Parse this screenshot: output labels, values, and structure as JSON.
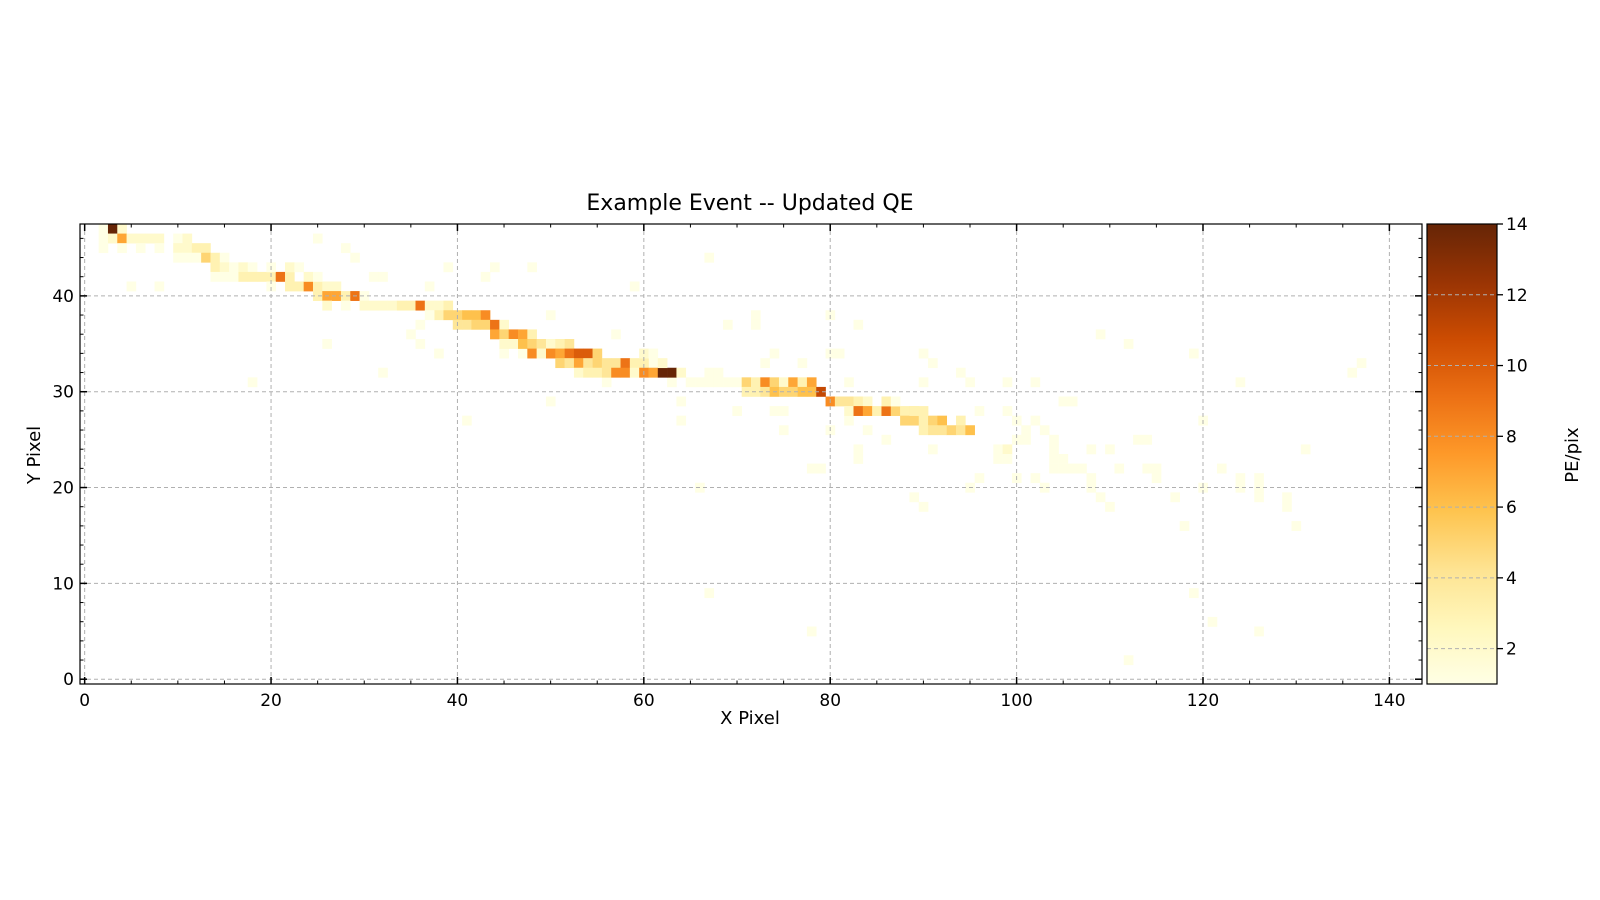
{
  "chart_data": {
    "type": "heatmap",
    "title": "Example Event -- Updated QE",
    "xlabel": "X Pixel",
    "ylabel": "Y Pixel",
    "xlim": [
      -0.5,
      143.5
    ],
    "ylim": [
      -0.5,
      47.5
    ],
    "xticks": [
      0,
      20,
      40,
      60,
      80,
      100,
      120,
      140
    ],
    "yticks": [
      0,
      10,
      20,
      30,
      40
    ],
    "grid": true,
    "colorbar": {
      "label": "PE/pix",
      "range": [
        1,
        14
      ],
      "ticks": [
        2,
        4,
        6,
        8,
        10,
        12,
        14
      ],
      "colormap": "YlOrBr",
      "colors": [
        "#ffffe5",
        "#fff7bc",
        "#fee391",
        "#fec44f",
        "#fe9929",
        "#ec7014",
        "#cc4c02",
        "#993404",
        "#662506"
      ]
    },
    "track": [
      [
        2,
        47,
        1
      ],
      [
        3,
        47,
        14
      ],
      [
        4,
        47,
        2
      ],
      [
        2,
        46,
        1
      ],
      [
        3,
        46,
        2
      ],
      [
        4,
        46,
        7
      ],
      [
        5,
        46,
        2
      ],
      [
        6,
        46,
        2
      ],
      [
        7,
        46,
        2
      ],
      [
        8,
        46,
        2
      ],
      [
        2,
        45,
        1
      ],
      [
        4,
        45,
        1
      ],
      [
        6,
        45,
        1
      ],
      [
        8,
        45,
        1
      ],
      [
        10,
        46,
        1
      ],
      [
        11,
        46,
        2
      ],
      [
        10,
        45,
        2
      ],
      [
        11,
        45,
        2
      ],
      [
        12,
        45,
        3
      ],
      [
        13,
        45,
        3
      ],
      [
        10,
        44,
        1
      ],
      [
        11,
        44,
        1
      ],
      [
        12,
        44,
        1
      ],
      [
        13,
        44,
        5
      ],
      [
        14,
        44,
        3
      ],
      [
        15,
        44,
        1
      ],
      [
        14,
        43,
        3
      ],
      [
        15,
        43,
        2
      ],
      [
        16,
        43,
        1
      ],
      [
        17,
        43,
        2
      ],
      [
        18,
        43,
        1
      ],
      [
        14,
        42,
        1
      ],
      [
        15,
        42,
        1
      ],
      [
        16,
        42,
        1
      ],
      [
        17,
        42,
        3
      ],
      [
        18,
        42,
        3
      ],
      [
        19,
        42,
        3
      ],
      [
        20,
        42,
        3
      ],
      [
        21,
        42,
        9
      ],
      [
        22,
        42,
        3
      ],
      [
        20,
        43,
        1
      ],
      [
        22,
        43,
        2
      ],
      [
        23,
        43,
        1
      ],
      [
        22,
        41,
        3
      ],
      [
        23,
        41,
        3
      ],
      [
        24,
        41,
        8
      ],
      [
        25,
        41,
        3
      ],
      [
        26,
        41,
        2
      ],
      [
        27,
        41,
        2
      ],
      [
        24,
        42,
        2
      ],
      [
        25,
        42,
        1
      ],
      [
        20,
        41,
        1
      ],
      [
        25,
        40,
        3
      ],
      [
        26,
        40,
        7
      ],
      [
        27,
        40,
        7
      ],
      [
        28,
        40,
        3
      ],
      [
        29,
        40,
        9
      ],
      [
        26,
        39,
        2
      ],
      [
        28,
        39,
        1
      ],
      [
        30,
        40,
        1
      ],
      [
        30,
        39,
        2
      ],
      [
        31,
        39,
        2
      ],
      [
        32,
        39,
        2
      ],
      [
        33,
        39,
        2
      ],
      [
        34,
        39,
        3
      ],
      [
        35,
        39,
        3
      ],
      [
        36,
        39,
        9
      ],
      [
        37,
        39,
        2
      ],
      [
        38,
        39,
        2
      ],
      [
        39,
        39,
        3
      ],
      [
        38,
        38,
        3
      ],
      [
        39,
        38,
        5
      ],
      [
        40,
        38,
        5
      ],
      [
        41,
        38,
        6
      ],
      [
        42,
        38,
        6
      ],
      [
        43,
        38,
        8
      ],
      [
        40,
        37,
        4
      ],
      [
        41,
        37,
        4
      ],
      [
        42,
        37,
        5
      ],
      [
        43,
        37,
        5
      ],
      [
        44,
        37,
        9
      ],
      [
        44,
        36,
        7
      ],
      [
        36,
        37,
        1
      ],
      [
        37,
        38,
        1
      ],
      [
        45,
        37,
        2
      ],
      [
        45,
        36,
        5
      ],
      [
        46,
        36,
        8
      ],
      [
        47,
        36,
        7
      ],
      [
        48,
        36,
        3
      ],
      [
        45,
        35,
        2
      ],
      [
        46,
        35,
        2
      ],
      [
        47,
        35,
        6
      ],
      [
        48,
        35,
        5
      ],
      [
        49,
        35,
        4
      ],
      [
        48,
        34,
        8
      ],
      [
        49,
        34,
        2
      ],
      [
        50,
        35,
        2
      ],
      [
        51,
        35,
        3
      ],
      [
        52,
        35,
        4
      ],
      [
        50,
        34,
        8
      ],
      [
        51,
        34,
        7
      ],
      [
        52,
        34,
        9
      ],
      [
        53,
        34,
        10
      ],
      [
        54,
        34,
        10
      ],
      [
        55,
        34,
        5
      ],
      [
        51,
        33,
        5
      ],
      [
        52,
        33,
        4
      ],
      [
        53,
        33,
        7
      ],
      [
        54,
        33,
        4
      ],
      [
        55,
        33,
        5
      ],
      [
        56,
        33,
        4
      ],
      [
        57,
        33,
        4
      ],
      [
        58,
        33,
        9
      ],
      [
        59,
        33,
        3
      ],
      [
        60,
        33,
        3
      ],
      [
        53,
        32,
        2
      ],
      [
        54,
        32,
        3
      ],
      [
        55,
        32,
        3
      ],
      [
        56,
        32,
        4
      ],
      [
        57,
        32,
        8
      ],
      [
        58,
        32,
        8
      ],
      [
        59,
        32,
        2
      ],
      [
        60,
        32,
        8
      ],
      [
        61,
        32,
        7
      ],
      [
        62,
        32,
        14
      ],
      [
        63,
        32,
        14
      ],
      [
        64,
        32,
        2
      ],
      [
        62,
        33,
        2
      ],
      [
        60,
        34,
        2
      ],
      [
        61,
        34,
        1
      ],
      [
        65,
        31,
        1
      ],
      [
        66,
        31,
        1
      ],
      [
        67,
        31,
        1
      ],
      [
        68,
        31,
        1
      ],
      [
        69,
        31,
        1
      ],
      [
        67,
        32,
        1
      ],
      [
        68,
        32,
        1
      ],
      [
        70,
        31,
        1
      ],
      [
        71,
        31,
        5
      ],
      [
        72,
        31,
        3
      ],
      [
        73,
        31,
        8
      ],
      [
        74,
        31,
        5
      ],
      [
        75,
        31,
        2
      ],
      [
        76,
        31,
        7
      ],
      [
        77,
        31,
        3
      ],
      [
        78,
        31,
        7
      ],
      [
        71,
        30,
        3
      ],
      [
        72,
        30,
        3
      ],
      [
        73,
        30,
        4
      ],
      [
        74,
        30,
        6
      ],
      [
        75,
        30,
        5
      ],
      [
        76,
        30,
        5
      ],
      [
        77,
        30,
        6
      ],
      [
        78,
        30,
        6
      ],
      [
        79,
        30,
        11
      ],
      [
        80,
        29,
        8
      ],
      [
        81,
        29,
        4
      ],
      [
        82,
        29,
        4
      ],
      [
        83,
        29,
        3
      ],
      [
        84,
        29,
        2
      ],
      [
        82,
        28,
        2
      ],
      [
        83,
        28,
        9
      ],
      [
        84,
        28,
        7
      ],
      [
        85,
        28,
        3
      ],
      [
        86,
        28,
        9
      ],
      [
        87,
        28,
        5
      ],
      [
        88,
        28,
        3
      ],
      [
        89,
        28,
        4
      ],
      [
        86,
        29,
        3
      ],
      [
        87,
        29,
        1
      ],
      [
        88,
        27,
        5
      ],
      [
        89,
        27,
        5
      ],
      [
        90,
        27,
        3
      ],
      [
        91,
        27,
        5
      ],
      [
        92,
        27,
        6
      ],
      [
        94,
        27,
        3
      ],
      [
        90,
        26,
        3
      ],
      [
        91,
        26,
        4
      ],
      [
        92,
        26,
        4
      ],
      [
        93,
        26,
        5
      ],
      [
        94,
        26,
        4
      ],
      [
        95,
        26,
        6
      ],
      [
        89,
        28,
        3
      ],
      [
        90,
        28,
        3
      ],
      [
        98,
        24,
        1
      ],
      [
        99,
        24,
        2
      ],
      [
        98,
        23,
        1
      ],
      [
        99,
        23,
        1
      ],
      [
        100,
        25,
        1
      ],
      [
        101,
        26,
        1
      ],
      [
        104,
        23,
        1
      ],
      [
        105,
        23,
        1
      ],
      [
        104,
        22,
        1
      ],
      [
        105,
        22,
        1
      ]
    ],
    "noise": [
      [
        25,
        46,
        1
      ],
      [
        29,
        44,
        1
      ],
      [
        28,
        45,
        1
      ],
      [
        31,
        42,
        1
      ],
      [
        32,
        42,
        1
      ],
      [
        35,
        36,
        1
      ],
      [
        37,
        41,
        1
      ],
      [
        39,
        43,
        1
      ],
      [
        43,
        42,
        1
      ],
      [
        44,
        43,
        1
      ],
      [
        48,
        43,
        1
      ],
      [
        50,
        38,
        1
      ],
      [
        38,
        34,
        1
      ],
      [
        41,
        27,
        1
      ],
      [
        26,
        35,
        1
      ],
      [
        32,
        32,
        1
      ],
      [
        18,
        31,
        1
      ],
      [
        8,
        41,
        1
      ],
      [
        5,
        41,
        1
      ],
      [
        50,
        29,
        1
      ],
      [
        59,
        41,
        1
      ],
      [
        64,
        29,
        1
      ],
      [
        64,
        27,
        1
      ],
      [
        66,
        20,
        1
      ],
      [
        67,
        9,
        1
      ],
      [
        67,
        44,
        1
      ],
      [
        69,
        37,
        1
      ],
      [
        70,
        28,
        1
      ],
      [
        72,
        38,
        1
      ],
      [
        72,
        37,
        1
      ],
      [
        73,
        33,
        1
      ],
      [
        74,
        34,
        1
      ],
      [
        74,
        28,
        1
      ],
      [
        75,
        28,
        1
      ],
      [
        75,
        26,
        1
      ],
      [
        77,
        33,
        1
      ],
      [
        78,
        22,
        1
      ],
      [
        79,
        22,
        1
      ],
      [
        78,
        5,
        1
      ],
      [
        80,
        38,
        1
      ],
      [
        80,
        34,
        1
      ],
      [
        81,
        34,
        1
      ],
      [
        80,
        26,
        1
      ],
      [
        82,
        27,
        1
      ],
      [
        82,
        31,
        1
      ],
      [
        83,
        37,
        1
      ],
      [
        83,
        24,
        1
      ],
      [
        83,
        23,
        1
      ],
      [
        84,
        26,
        1
      ],
      [
        86,
        25,
        1
      ],
      [
        89,
        19,
        1
      ],
      [
        90,
        18,
        1
      ],
      [
        90,
        34,
        1
      ],
      [
        91,
        33,
        1
      ],
      [
        90,
        31,
        1
      ],
      [
        91,
        24,
        1
      ],
      [
        94,
        32,
        1
      ],
      [
        95,
        31,
        1
      ],
      [
        96,
        28,
        1
      ],
      [
        96,
        21,
        1
      ],
      [
        95,
        20,
        1
      ],
      [
        99,
        31,
        1
      ],
      [
        99,
        28,
        1
      ],
      [
        100,
        27,
        1
      ],
      [
        100,
        21,
        1
      ],
      [
        101,
        25,
        1
      ],
      [
        102,
        31,
        1
      ],
      [
        102,
        27,
        1
      ],
      [
        102,
        21,
        1
      ],
      [
        103,
        26,
        1
      ],
      [
        103,
        20,
        1
      ],
      [
        104,
        25,
        1
      ],
      [
        104,
        24,
        1
      ],
      [
        105,
        29,
        1
      ],
      [
        106,
        29,
        1
      ],
      [
        106,
        22,
        1
      ],
      [
        107,
        22,
        1
      ],
      [
        108,
        24,
        1
      ],
      [
        108,
        21,
        1
      ],
      [
        108,
        20,
        1
      ],
      [
        109,
        36,
        1
      ],
      [
        109,
        19,
        1
      ],
      [
        110,
        24,
        1
      ],
      [
        110,
        18,
        1
      ],
      [
        111,
        22,
        1
      ],
      [
        112,
        35,
        1
      ],
      [
        112,
        2,
        1
      ],
      [
        113,
        25,
        1
      ],
      [
        114,
        25,
        1
      ],
      [
        114,
        22,
        1
      ],
      [
        115,
        22,
        1
      ],
      [
        115,
        21,
        1
      ],
      [
        117,
        19,
        1
      ],
      [
        118,
        16,
        1
      ],
      [
        119,
        34,
        1
      ],
      [
        119,
        9,
        1
      ],
      [
        120,
        27,
        1
      ],
      [
        120,
        20,
        1
      ],
      [
        121,
        6,
        1
      ],
      [
        122,
        22,
        1
      ],
      [
        124,
        31,
        1
      ],
      [
        124,
        21,
        1
      ],
      [
        124,
        20,
        1
      ],
      [
        126,
        21,
        1
      ],
      [
        126,
        20,
        1
      ],
      [
        126,
        19,
        1
      ],
      [
        126,
        5,
        1
      ],
      [
        129,
        19,
        1
      ],
      [
        129,
        18,
        1
      ],
      [
        130,
        16,
        1
      ],
      [
        131,
        24,
        1
      ],
      [
        136,
        32,
        1
      ],
      [
        137,
        33,
        1
      ],
      [
        36,
        35,
        1
      ],
      [
        45,
        34,
        1
      ],
      [
        47,
        34,
        1
      ],
      [
        56,
        31,
        1
      ],
      [
        57,
        36,
        1
      ],
      [
        61,
        33,
        1
      ],
      [
        63,
        31,
        1
      ]
    ]
  }
}
